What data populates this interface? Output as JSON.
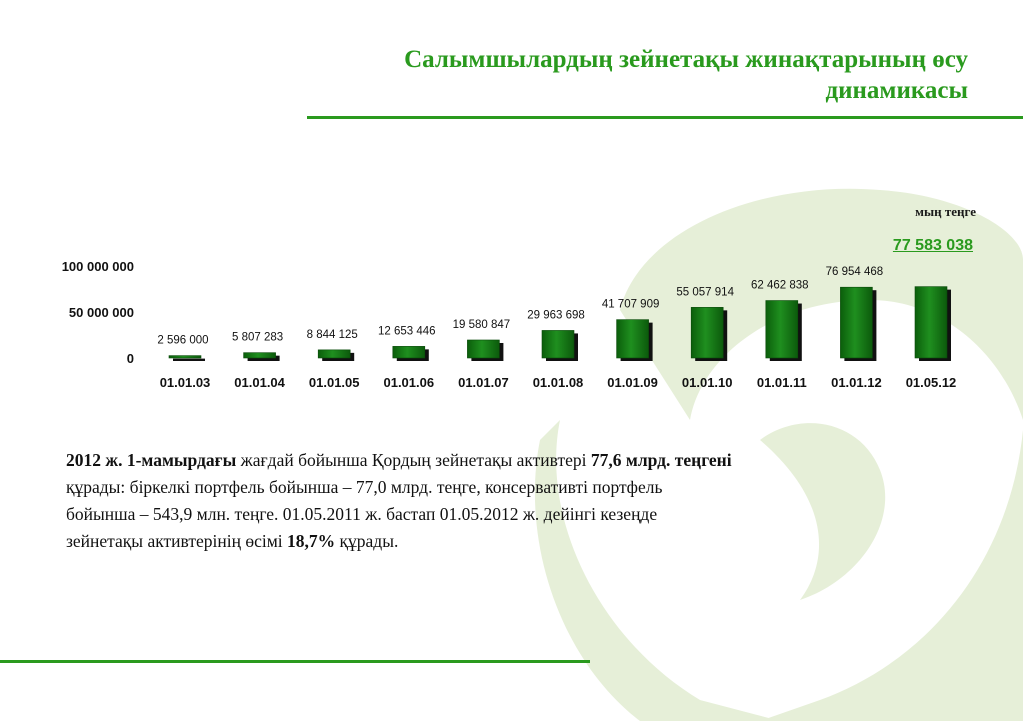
{
  "title_line1": "Салымшылардың зейнетақы жинақтарының өсу",
  "title_line2": "динамикасы",
  "colors": {
    "accent": "#2a9a1e",
    "bar_dark": "#0b5e0b",
    "bar_light": "#1f8f1f",
    "decor": "#e6efd8"
  },
  "unit_label": "мың теңге",
  "highlight_value": "77 583 038",
  "chart_data": {
    "type": "bar",
    "categories": [
      "01.01.03",
      "01.01.04",
      "01.01.05",
      "01.01.06",
      "01.01.07",
      "01.01.08",
      "01.01.09",
      "01.01.10",
      "01.01.11",
      "01.01.12",
      "01.05.12"
    ],
    "values": [
      2596000,
      5807283,
      8844125,
      12653446,
      19580847,
      29963698,
      41707909,
      55057914,
      62462838,
      76954468,
      77583038
    ],
    "data_labels": [
      "2 596 000",
      "5 807 283",
      "8 844 125",
      "12 653 446",
      "19 580 847",
      "29 963 698",
      "41 707 909",
      "55 057 914",
      "62 462 838",
      "76 954 468",
      ""
    ],
    "yticks": [
      {
        "value": 0,
        "label": "0"
      },
      {
        "value": 50000000,
        "label": "50 000 000"
      },
      {
        "value": 100000000,
        "label": "100 000 000"
      }
    ],
    "ylim": [
      0,
      100000000
    ],
    "grid": false,
    "legend": "none"
  },
  "paragraph": {
    "l1_b1": "2012 ж. 1-мамырдағы",
    "l1_t1": " жағдай бойынша Қордың зейнетақы активтері ",
    "l1_b2": "77,6 млрд. теңгені",
    "l2": "құрады: біркелкі портфель бойынша – 77,0 млрд. теңге, консервативті портфель",
    "l3": "бойынша – 543,9 млн. теңге. 01.05.2011 ж. бастап 01.05.2012 ж. дейінгі кезеңде",
    "l4_t1": "зейнетақы активтерінің өсімі ",
    "l4_b1": "18,7%",
    "l4_t2": " құрады."
  }
}
